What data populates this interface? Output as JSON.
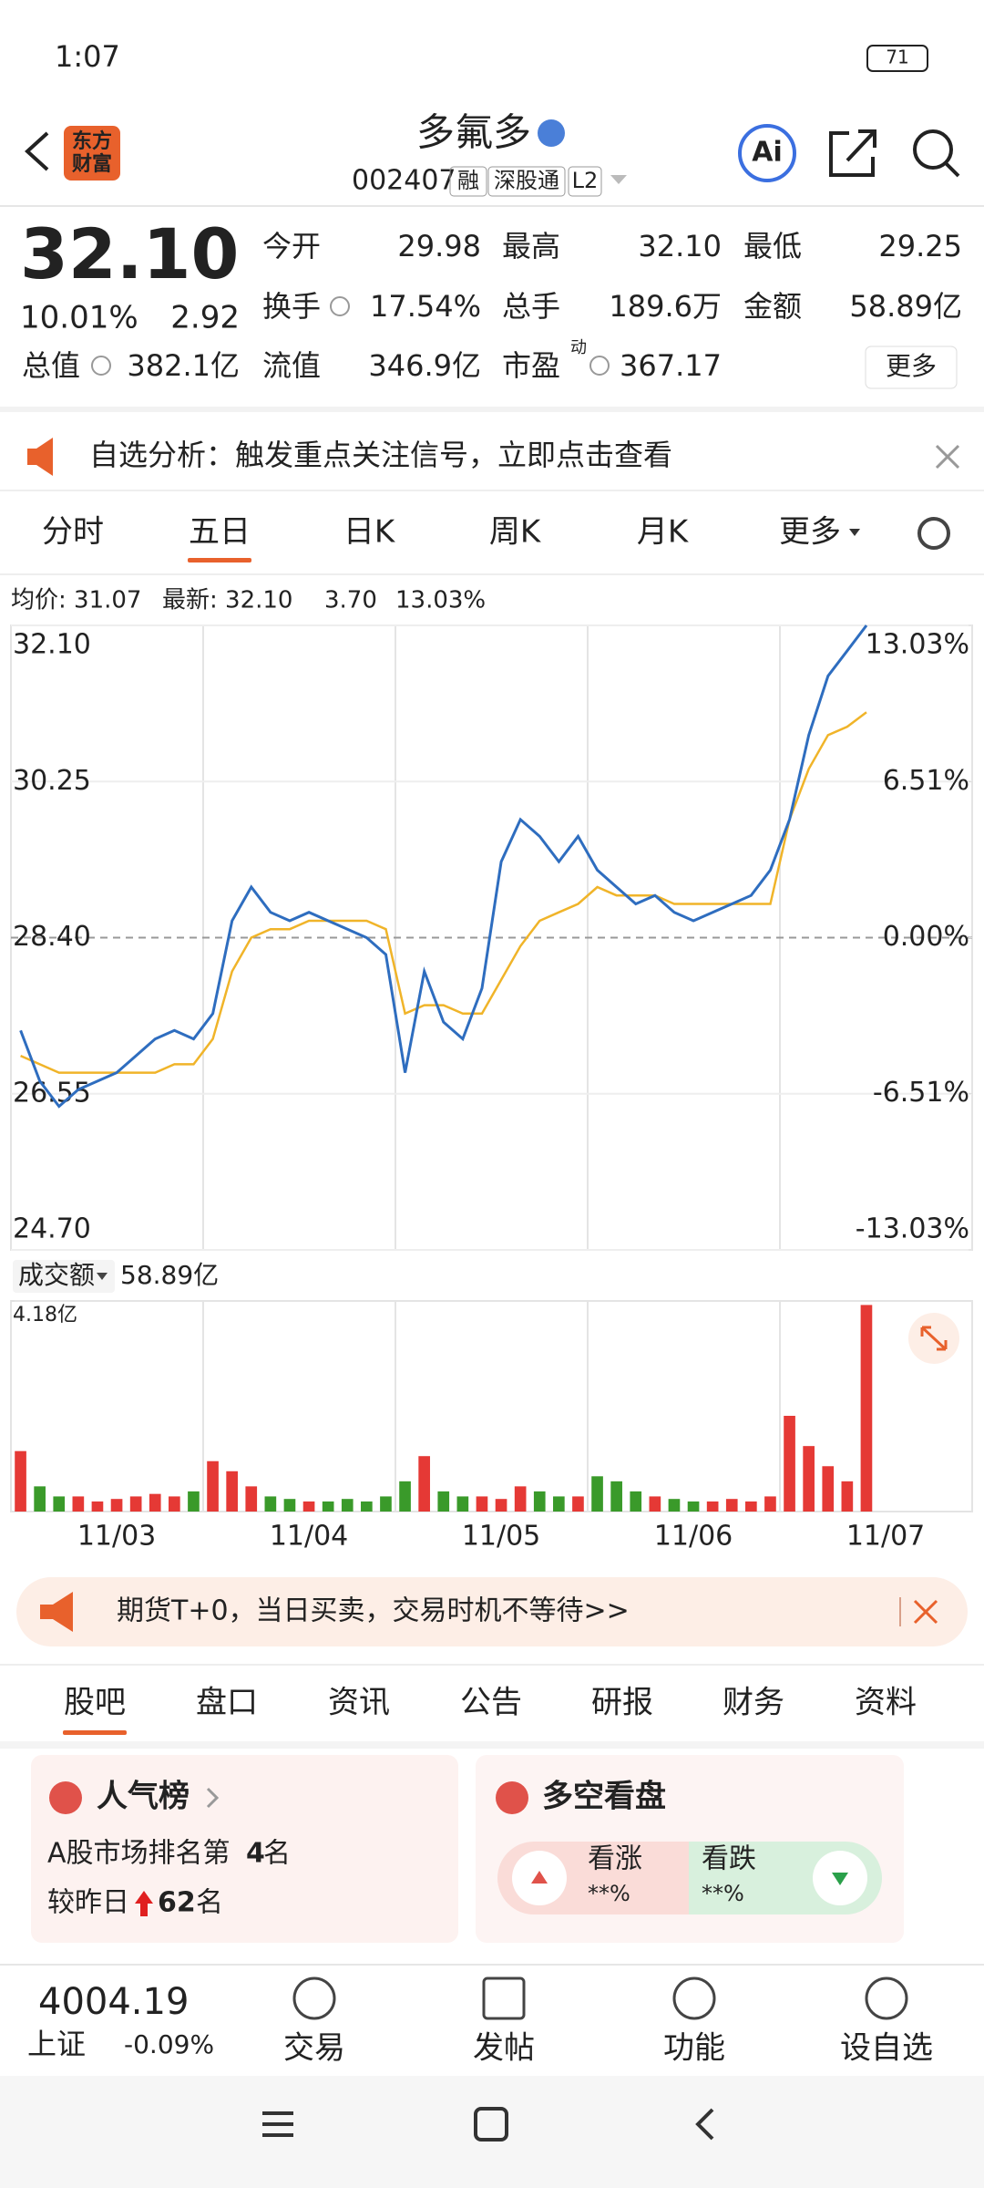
{
  "status": {
    "time": "1:07",
    "battery": "71"
  },
  "header": {
    "logo": [
      "东方",
      "财富"
    ],
    "title": "多氟多",
    "code": "002407",
    "tags": [
      "融",
      "深股通",
      "L2"
    ],
    "ai": "Ai"
  },
  "quote": {
    "price": "32.10",
    "change_pct": "10.01%",
    "change": "2.92",
    "more": "更多",
    "pe_sup": "动",
    "fields": [
      {
        "label": "今开",
        "value": "29.98"
      },
      {
        "label": "最高",
        "value": "32.10"
      },
      {
        "label": "最低",
        "value": "29.25"
      },
      {
        "label": "换手",
        "value": "17.54%"
      },
      {
        "label": "总手",
        "value": "189.6万"
      },
      {
        "label": "金额",
        "value": "58.89亿"
      },
      {
        "label": "总值",
        "value": "382.1亿"
      },
      {
        "label": "流值",
        "value": "346.9亿"
      },
      {
        "label": "市盈",
        "value": "367.17"
      }
    ]
  },
  "notice": "自选分析：触发重点关注信号，立即点击查看",
  "tabs": {
    "items": [
      "分时",
      "五日",
      "日K",
      "周K",
      "月K",
      "更多"
    ],
    "active": 1
  },
  "chart_info": [
    "均价: 31.07",
    "最新: 32.10",
    "3.70",
    "13.03%"
  ],
  "chart_data": [
    {
      "type": "line",
      "ylim": [
        24.7,
        32.1
      ],
      "yticks": [
        {
          "value": 32.1,
          "label": "32.10"
        },
        {
          "value": 30.25,
          "label": "30.25"
        },
        {
          "value": 28.4,
          "label": "28.40"
        },
        {
          "value": 26.55,
          "label": "26.55"
        },
        {
          "value": 24.7,
          "label": "24.70"
        }
      ],
      "y2lim": [
        -13.03,
        13.03
      ],
      "y2ticks": [
        {
          "value": 13.03,
          "label": "13.03%"
        },
        {
          "value": 6.51,
          "label": "6.51%"
        },
        {
          "value": 0,
          "label": "0.00%"
        },
        {
          "value": -6.51,
          "label": "-6.51%"
        },
        {
          "value": -13.03,
          "label": "-13.03%"
        }
      ],
      "series": [
        {
          "color": "#2e6dbf",
          "values": [
            27.3,
            26.7,
            26.4,
            26.6,
            26.7,
            26.8,
            27.0,
            27.2,
            27.3,
            27.2,
            27.5,
            28.6,
            29.0,
            28.7,
            28.6,
            28.7,
            28.6,
            28.5,
            28.4,
            28.2,
            26.8,
            28.0,
            27.4,
            27.2,
            27.8,
            29.3,
            29.8,
            29.6,
            29.3,
            29.6,
            29.2,
            29.0,
            28.8,
            28.9,
            28.7,
            28.6,
            28.7,
            28.8,
            28.9,
            29.2,
            29.8,
            30.8,
            31.5,
            31.8,
            32.1,
            null,
            null,
            null,
            null,
            null
          ]
        },
        {
          "color": "#f0b429",
          "values": [
            27.0,
            26.9,
            26.8,
            26.8,
            26.8,
            26.8,
            26.8,
            26.8,
            26.9,
            26.9,
            27.2,
            28.0,
            28.4,
            28.5,
            28.5,
            28.6,
            28.6,
            28.6,
            28.6,
            28.5,
            27.5,
            27.6,
            27.6,
            27.5,
            27.5,
            27.9,
            28.3,
            28.6,
            28.7,
            28.8,
            29.0,
            28.9,
            28.9,
            28.9,
            28.8,
            28.8,
            28.8,
            28.8,
            28.8,
            28.8,
            29.8,
            30.4,
            30.8,
            30.9,
            31.07,
            null,
            null,
            null,
            null,
            null
          ]
        }
      ]
    },
    {
      "type": "bar",
      "title": "成交额",
      "total": "58.89亿",
      "ylim": [
        0,
        4.18
      ],
      "yticks": [
        {
          "value": 4.18,
          "label": "4.18亿"
        }
      ],
      "up_color": "#e53935",
      "down_color": "#3a9a2a",
      "categories": [
        null,
        null,
        null,
        null,
        null,
        "11/03",
        null,
        null,
        null,
        null,
        null,
        null,
        null,
        null,
        null,
        "11/04",
        null,
        null,
        null,
        null,
        null,
        null,
        null,
        null,
        null,
        "11/05",
        null,
        null,
        null,
        null,
        null,
        null,
        null,
        null,
        null,
        "11/06",
        null,
        null,
        null,
        null,
        null,
        null,
        null,
        null,
        null,
        "11/07",
        null,
        null,
        null,
        null
      ],
      "values": [
        1.2,
        0.5,
        0.3,
        0.3,
        0.2,
        0.25,
        0.3,
        0.35,
        0.3,
        0.4,
        1.0,
        0.8,
        0.5,
        0.3,
        0.25,
        0.2,
        0.2,
        0.25,
        0.2,
        0.3,
        0.6,
        1.1,
        0.4,
        0.3,
        0.3,
        0.25,
        0.5,
        0.4,
        0.3,
        0.3,
        0.7,
        0.6,
        0.4,
        0.3,
        0.25,
        0.2,
        0.2,
        0.25,
        0.2,
        0.3,
        1.9,
        1.3,
        0.9,
        0.6,
        4.1,
        null,
        null,
        null,
        null,
        null
      ]
    }
  ],
  "news": "期货T+0，当日买卖，交易时机不等待>>",
  "tabs2": {
    "items": [
      "股吧",
      "盘口",
      "资讯",
      "公告",
      "研报",
      "财务",
      "资料"
    ],
    "active": 0
  },
  "popularity": {
    "title": "人气榜",
    "rank_prefix": "A股市场排名第",
    "rank": "4",
    "rank_suffix": "名",
    "change_prefix": "较昨日",
    "change": "62",
    "change_suffix": "名"
  },
  "sentiment": {
    "title": "多空看盘",
    "bull": "看涨",
    "bull_value": "**%",
    "bear": "看跌",
    "bear_value": "**%"
  },
  "index": {
    "value": "4004.19",
    "name": "上证",
    "change": "-0.09%"
  },
  "nav": [
    "交易",
    "发帖",
    "功能",
    "设自选"
  ]
}
